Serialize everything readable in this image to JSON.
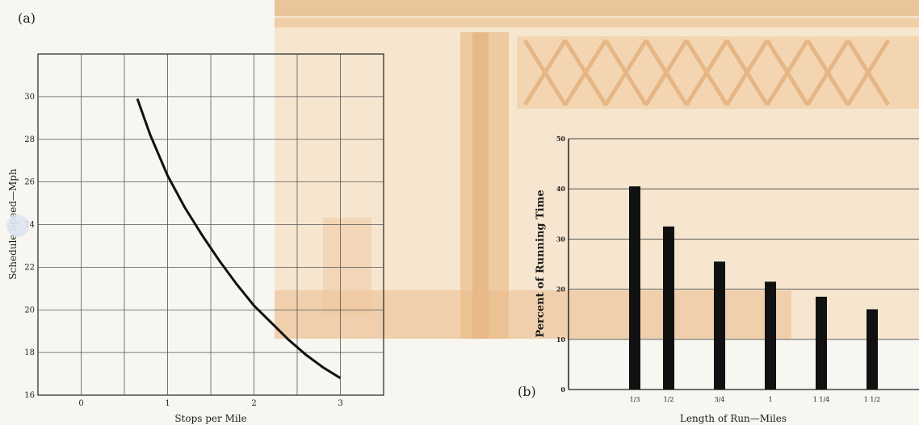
{
  "chart_data": [
    {
      "type": "line",
      "panel_label": "(a)",
      "title": "",
      "xlabel": "Stops per Mile",
      "ylabel": "Schedule Speed—Mph",
      "x_ticks": [
        0,
        1,
        2,
        3
      ],
      "y_ticks": [
        16,
        18,
        20,
        22,
        24,
        26,
        28,
        30
      ],
      "xlim": [
        -0.5,
        3.5
      ],
      "ylim": [
        16,
        32
      ],
      "grid": true,
      "series": [
        {
          "x": [
            0.65,
            0.8,
            1.0,
            1.2,
            1.4,
            1.6,
            1.8,
            2.0,
            2.2,
            2.4,
            2.6,
            2.8,
            3.0
          ],
          "y": [
            29.9,
            28.2,
            26.3,
            24.8,
            23.5,
            22.3,
            21.2,
            20.2,
            19.4,
            18.6,
            17.9,
            17.3,
            16.8
          ]
        }
      ]
    },
    {
      "type": "bar",
      "panel_label": "(b)",
      "title": "",
      "xlabel": "Length of Run—Miles",
      "ylabel": "Percent of Running Time",
      "categories": [
        "1/3",
        "1/2",
        "3/4",
        "1",
        "1 1/4",
        "1 1/2"
      ],
      "x_positions": [
        0.3333,
        0.5,
        0.75,
        1.0,
        1.25,
        1.5
      ],
      "values": [
        40.5,
        32.5,
        25.5,
        21.5,
        18.5,
        16.0
      ],
      "y_ticks": [
        0,
        10,
        20,
        30,
        40,
        50
      ],
      "ylim": [
        0,
        50
      ],
      "grid": true,
      "colors": {
        "bar": "#111111"
      }
    }
  ]
}
